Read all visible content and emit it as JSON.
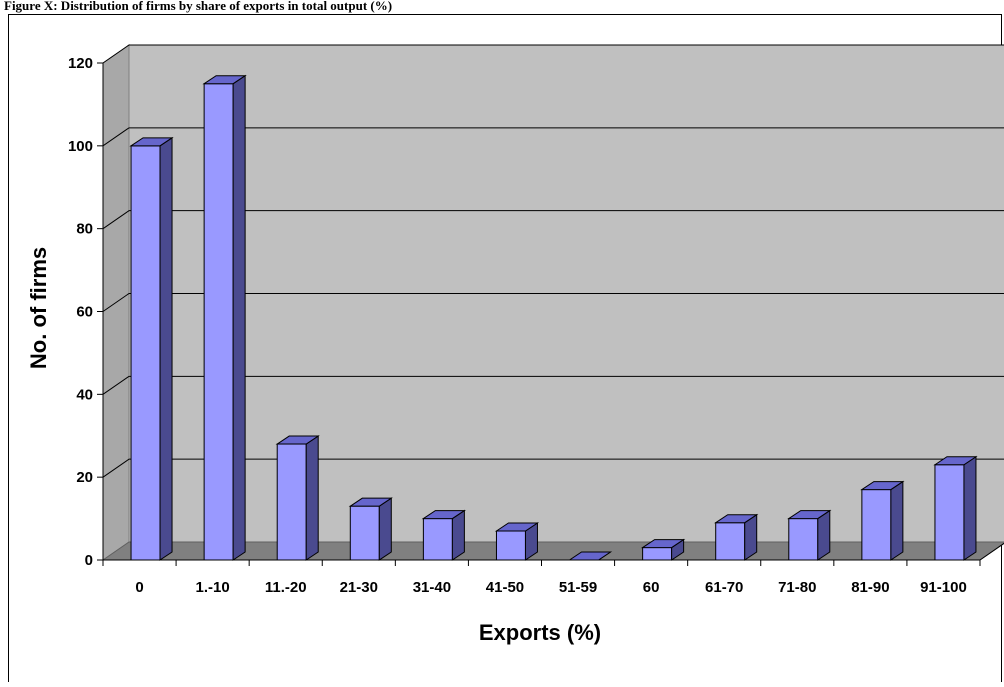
{
  "caption": "Figure X: Distribution of firms by share of exports in total output (%)",
  "colors": {
    "bar_front": "#9999FF",
    "bar_side": "#4A4A8F",
    "bar_top": "#6666CC",
    "back_wall": "#C0C0C0",
    "floor": "#808080",
    "gridline": "#000000"
  },
  "chart_data": {
    "type": "bar",
    "style": "3d-column",
    "categories": [
      "0",
      "1.-10",
      "11.-20",
      "21-30",
      "31-40",
      "41-50",
      "51-59",
      "60",
      "61-70",
      "71-80",
      "81-90",
      "91-100"
    ],
    "values": [
      100,
      115,
      28,
      13,
      10,
      7,
      0,
      3,
      9,
      10,
      17,
      23
    ],
    "xlabel": "Exports (%)",
    "ylabel": "No. of firms",
    "ylim": [
      0,
      120
    ],
    "yticks": [
      0,
      20,
      40,
      60,
      80,
      100,
      120
    ],
    "grid": true,
    "legend": "none"
  }
}
